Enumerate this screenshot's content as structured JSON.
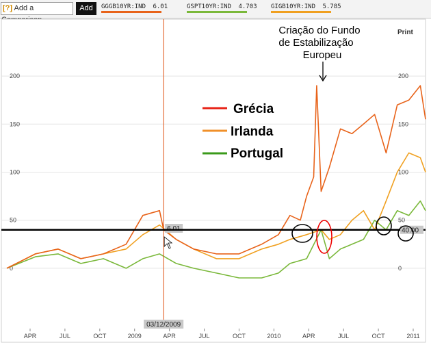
{
  "toolbar": {
    "compare_icon": "?",
    "compare_label": "Add a Comparison",
    "add_label": "Add"
  },
  "tickers": [
    {
      "label": "GGGB10YR:IND",
      "value": "6.01",
      "color": "#e8631a"
    },
    {
      "label": "GSPT10YR:IND",
      "value": "4.703",
      "color": "#7ab83a"
    },
    {
      "label": "GIGB10YR:IND",
      "value": "5.785",
      "color": "#f0a020"
    }
  ],
  "print_label": "Print",
  "annotation": [
    "Criação do Fundo",
    "de Estabilização",
    "Europeu"
  ],
  "legend": [
    {
      "name": "Grécia",
      "color": "#e8261a"
    },
    {
      "name": "Irlanda",
      "color": "#f0902a"
    },
    {
      "name": "Portugal",
      "color": "#3a9a1a"
    }
  ],
  "crosshair": {
    "date_label": "03/12/2009",
    "value_label": "6.01"
  },
  "ref_value_label": "40.00",
  "chart_data": {
    "type": "line",
    "x_ticks": [
      "APR",
      "JUL",
      "OCT",
      "2009",
      "APR",
      "JUL",
      "OCT",
      "2010",
      "APR",
      "JUL",
      "OCT",
      "2011"
    ],
    "y_ticks": [
      0,
      50,
      100,
      150,
      200
    ],
    "right_ticks": [
      0,
      50,
      100,
      150,
      200
    ],
    "ylim": [
      -20,
      215
    ],
    "xlim": [
      "2008-01-15",
      "2011-02-15"
    ],
    "reference_line": 40,
    "crosshair_x": "2009-03-12",
    "series": [
      {
        "name": "Grécia",
        "color": "#e8631a",
        "x": [
          "2008-01-15",
          "2008-04-01",
          "2008-06-01",
          "2008-08-01",
          "2008-10-01",
          "2008-12-01",
          "2009-01-15",
          "2009-03-01",
          "2009-03-12",
          "2009-04-15",
          "2009-06-01",
          "2009-08-01",
          "2009-10-01",
          "2009-12-01",
          "2010-01-15",
          "2010-02-15",
          "2010-03-15",
          "2010-04-01",
          "2010-04-20",
          "2010-04-28",
          "2010-05-10",
          "2010-06-01",
          "2010-07-01",
          "2010-08-01",
          "2010-09-01",
          "2010-10-01",
          "2010-11-01",
          "2010-12-01",
          "2011-01-01",
          "2011-02-01",
          "2011-02-15"
        ],
        "y": [
          0,
          15,
          20,
          10,
          15,
          25,
          55,
          60,
          40,
          30,
          20,
          15,
          15,
          25,
          35,
          55,
          50,
          75,
          95,
          190,
          80,
          105,
          145,
          140,
          150,
          160,
          120,
          170,
          175,
          190,
          155
        ]
      },
      {
        "name": "Irlanda",
        "color": "#f0a020",
        "x": [
          "2008-01-15",
          "2008-04-01",
          "2008-06-01",
          "2008-08-01",
          "2008-10-01",
          "2008-12-01",
          "2009-01-15",
          "2009-03-01",
          "2009-04-15",
          "2009-06-01",
          "2009-08-01",
          "2009-10-01",
          "2009-12-01",
          "2010-01-15",
          "2010-02-15",
          "2010-04-01",
          "2010-05-10",
          "2010-06-01",
          "2010-07-01",
          "2010-08-01",
          "2010-09-01",
          "2010-10-01",
          "2010-11-01",
          "2010-12-01",
          "2011-01-01",
          "2011-02-01",
          "2011-02-15"
        ],
        "y": [
          0,
          15,
          20,
          10,
          15,
          20,
          35,
          45,
          30,
          20,
          10,
          10,
          20,
          25,
          30,
          35,
          40,
          30,
          35,
          50,
          60,
          40,
          70,
          100,
          120,
          115,
          100
        ]
      },
      {
        "name": "Portugal",
        "color": "#7ab83a",
        "x": [
          "2008-01-15",
          "2008-04-01",
          "2008-06-01",
          "2008-08-01",
          "2008-10-01",
          "2008-12-01",
          "2009-01-15",
          "2009-03-01",
          "2009-04-15",
          "2009-06-01",
          "2009-08-01",
          "2009-10-01",
          "2009-12-01",
          "2010-01-15",
          "2010-02-15",
          "2010-04-01",
          "2010-05-10",
          "2010-06-01",
          "2010-07-01",
          "2010-08-01",
          "2010-09-01",
          "2010-10-01",
          "2010-11-01",
          "2010-12-01",
          "2011-01-01",
          "2011-02-01",
          "2011-02-15"
        ],
        "y": [
          0,
          12,
          15,
          5,
          10,
          0,
          10,
          15,
          5,
          0,
          -5,
          -10,
          -10,
          -5,
          5,
          10,
          40,
          10,
          20,
          25,
          30,
          50,
          40,
          60,
          55,
          70,
          60
        ]
      }
    ]
  }
}
